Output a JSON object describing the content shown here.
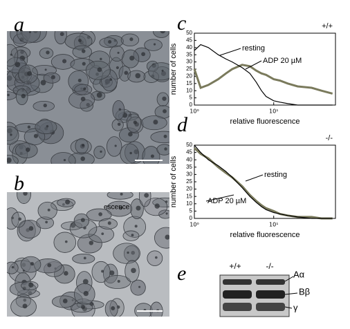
{
  "panels": {
    "a": "a",
    "b": "b",
    "c": "c",
    "d": "d",
    "e": "e",
    "b_overlay": "escence"
  },
  "chart_data": [
    {
      "type": "line",
      "panel": "c",
      "genotype": "+/+",
      "y_label": "number of cells",
      "x_label": "relative fluorescence",
      "log_x": true,
      "x": [
        1,
        1.2,
        1.5,
        2,
        2.5,
        3,
        4,
        5,
        6,
        7,
        8,
        10,
        12,
        15,
        20,
        30,
        40,
        55
      ],
      "series": [
        {
          "name": "resting",
          "color": "#000000",
          "values": [
            38,
            42,
            40,
            35,
            32,
            30,
            26,
            22,
            16,
            10,
            6,
            3,
            2,
            1,
            0,
            0,
            0,
            0
          ]
        },
        {
          "name": "ADP 20 µM",
          "color": "#7a7a5c",
          "values": [
            25,
            12,
            14,
            18,
            22,
            25,
            28,
            27,
            24,
            22,
            21,
            18,
            17,
            15,
            13,
            12,
            10,
            8
          ]
        }
      ],
      "xlim": [
        1,
        60
      ],
      "xticks": [
        {
          "value": 1,
          "label": "10⁰"
        },
        {
          "value": 10,
          "label": "10¹"
        }
      ],
      "ylim": [
        0,
        50
      ],
      "yticks": [
        0,
        5,
        10,
        15,
        20,
        25,
        30,
        35,
        40,
        45,
        50
      ]
    },
    {
      "type": "line",
      "panel": "d",
      "genotype": "-/-",
      "y_label": "number of cells",
      "x_label": "relative fluorescence",
      "log_x": true,
      "x": [
        1,
        1.2,
        1.5,
        2,
        2.5,
        3,
        4,
        5,
        6,
        7,
        8,
        10,
        12,
        15,
        20,
        30,
        40,
        55
      ],
      "series": [
        {
          "name": "resting",
          "color": "#000000",
          "values": [
            50,
            45,
            40,
            36,
            32,
            28,
            21,
            15,
            11,
            8,
            6,
            4,
            3,
            2,
            1,
            0,
            0,
            0
          ]
        },
        {
          "name": "ADP 20 µM",
          "color": "#7a7a5c",
          "values": [
            48,
            44,
            41,
            35,
            31,
            28,
            22,
            16,
            12,
            9,
            7,
            5,
            3,
            2,
            1,
            1,
            0,
            0
          ]
        }
      ],
      "xlim": [
        1,
        60
      ],
      "xticks": [
        {
          "value": 1,
          "label": "10⁰"
        },
        {
          "value": 10,
          "label": "10¹"
        }
      ],
      "ylim": [
        0,
        50
      ],
      "yticks": [
        0,
        5,
        10,
        15,
        20,
        25,
        30,
        35,
        40,
        45,
        50
      ]
    }
  ],
  "blot": {
    "lanes": [
      "+/+",
      "-/-"
    ],
    "bands": [
      "Aα",
      "Bβ",
      "γ"
    ]
  }
}
